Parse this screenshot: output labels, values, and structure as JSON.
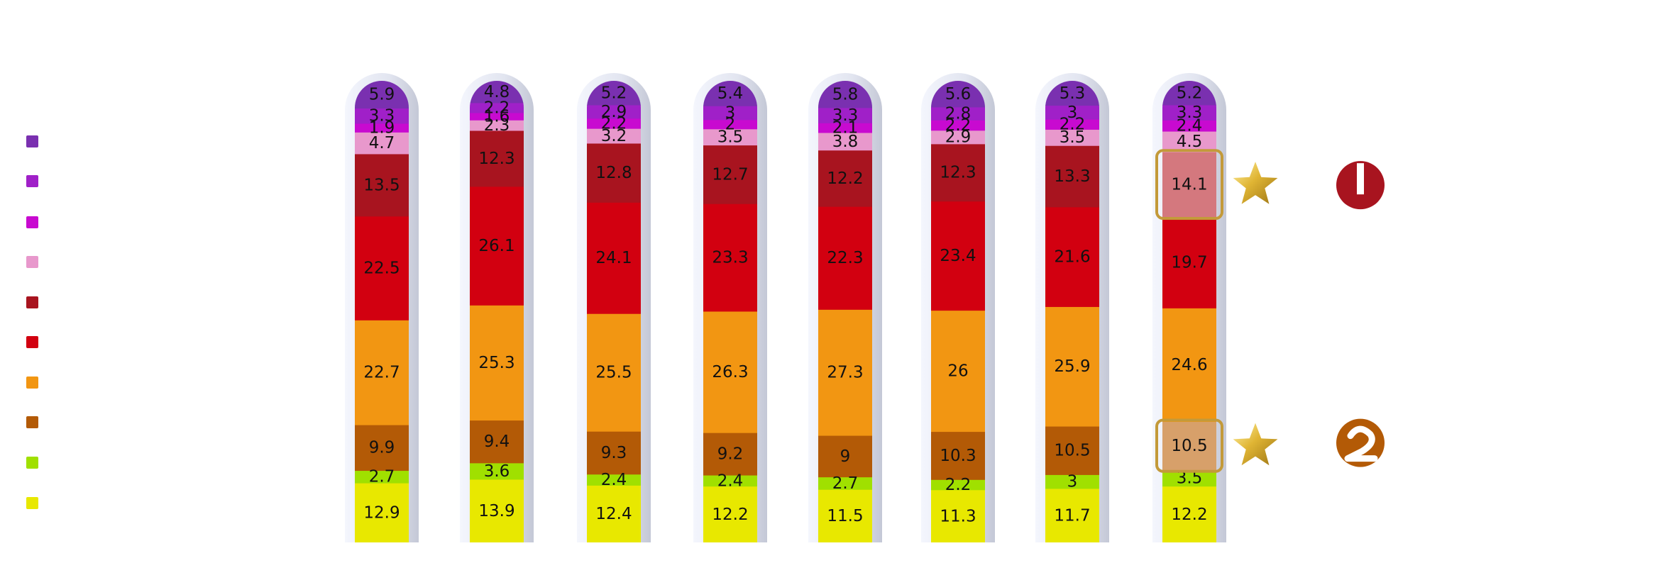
{
  "chart_data": {
    "type": "bar",
    "stacked": true,
    "orientation": "vertical",
    "grid": false,
    "legend_position": "left",
    "title": "",
    "xlabel": "",
    "ylabel": "",
    "ylim": [
      0,
      100
    ],
    "series": [
      {
        "color": "#e8e800",
        "values": [
          12.9,
          13.9,
          12.4,
          12.2,
          11.5,
          11.3,
          11.7,
          12.2
        ]
      },
      {
        "color": "#a0e000",
        "values": [
          2.7,
          3.6,
          2.4,
          2.4,
          2.7,
          2.2,
          3,
          3.5
        ]
      },
      {
        "color": "#b35a06",
        "values": [
          9.9,
          9.4,
          9.3,
          9.2,
          9,
          10.3,
          10.5,
          10.5
        ]
      },
      {
        "color": "#f29612",
        "values": [
          22.7,
          25.3,
          25.5,
          26.3,
          27.3,
          26,
          25.9,
          24.6
        ]
      },
      {
        "color": "#d20010",
        "values": [
          22.5,
          26.1,
          24.1,
          23.3,
          22.3,
          23.4,
          21.6,
          19.7
        ]
      },
      {
        "color": "#a8141f",
        "values": [
          13.5,
          12.3,
          12.8,
          12.7,
          12.2,
          12.3,
          13.3,
          14.1
        ]
      },
      {
        "color": "#e898cc",
        "values": [
          4.7,
          2.3,
          3.2,
          3.5,
          3.8,
          2.9,
          3.5,
          4.5
        ]
      },
      {
        "color": "#c80ad0",
        "values": [
          1.9,
          1.6,
          2.2,
          2,
          2.1,
          2.2,
          2.2,
          2.4
        ]
      },
      {
        "color": "#a020c8",
        "values": [
          3.3,
          2.2,
          2.9,
          3,
          3.3,
          2.8,
          3,
          3.3
        ]
      },
      {
        "color": "#7a30b0",
        "values": [
          5.9,
          4.8,
          5.2,
          5.4,
          5.8,
          5.6,
          5.3,
          5.2
        ]
      }
    ],
    "highlights": [
      {
        "bar_index": 7,
        "series_index": 5,
        "highlight_color": "#d4787e",
        "marker_icon": "star-icon",
        "badge_icon": "ballot-number-1-icon"
      },
      {
        "bar_index": 7,
        "series_index": 2,
        "highlight_color": "#d7a06a",
        "marker_icon": "star-icon",
        "badge_icon": "ballot-number-2-icon"
      }
    ]
  },
  "colors": {
    "badge_1": "#a8141f",
    "badge_2": "#b35a06",
    "star_gold": "#d4a81a",
    "highlight_border": "#c39a3a"
  }
}
